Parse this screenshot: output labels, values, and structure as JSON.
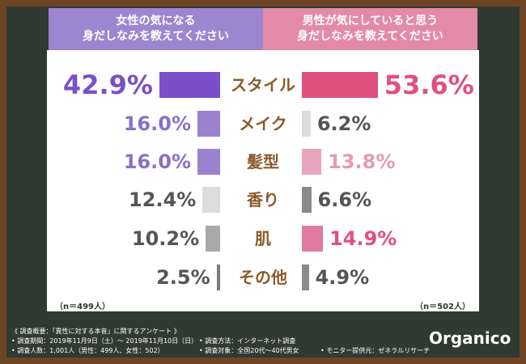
{
  "chart_data": {
    "type": "butterfly",
    "categories": [
      "スタイル",
      "メイク",
      "髪型",
      "香り",
      "肌",
      "その他"
    ],
    "series": [
      {
        "name": "女性の気になる\n身だしなみを教えてください",
        "header_color": "#9d86cf",
        "sample_label": "（n＝499人）",
        "values": [
          42.9,
          16.0,
          16.0,
          12.4,
          10.2,
          2.5
        ],
        "value_labels": [
          "42.9%",
          "16.0%",
          "16.0%",
          "12.4%",
          "10.2%",
          "2.5%"
        ],
        "colors": [
          "#7a4fc9",
          "#9b82d0",
          "#9b82d0",
          "#dcdcdc",
          "#a9a9a9",
          "#7a7a7a"
        ],
        "label_colors": [
          "#7a4fc9",
          "#8a6fca",
          "#8a6fca",
          "#555555",
          "#555555",
          "#555555"
        ]
      },
      {
        "name": "男性が気にしていると思う\n身だしなみを教えてください",
        "header_color": "#e38aa9",
        "sample_label": "（n＝502人）",
        "values": [
          53.6,
          6.2,
          13.8,
          6.6,
          14.9,
          4.9
        ],
        "value_labels": [
          "53.6%",
          "6.2%",
          "13.8%",
          "6.6%",
          "14.9%",
          "4.9%"
        ],
        "colors": [
          "#e0507f",
          "#dcdcdc",
          "#e8a3bd",
          "#8a8a8a",
          "#e07aa1",
          "#8a8a8a"
        ],
        "label_colors": [
          "#e0507f",
          "#555555",
          "#e39ab5",
          "#555555",
          "#e0507f",
          "#555555"
        ]
      }
    ],
    "category_color": "#8a5a2b"
  },
  "notes": [
    "《 調査概要：「異性に対する本音」に関するアンケート 》",
    "• 調査期間：2019年11月9日（土）～ 2019年11月10日（日）",
    "• 調査方法：インターネット調査",
    "• 調査人数：1,001人（男性：499人、女性：502）",
    "• 調査対象：全国20代～40代男女",
    "• モニター提供元：ゼネラルリサーチ"
  ],
  "logo": "Organico"
}
